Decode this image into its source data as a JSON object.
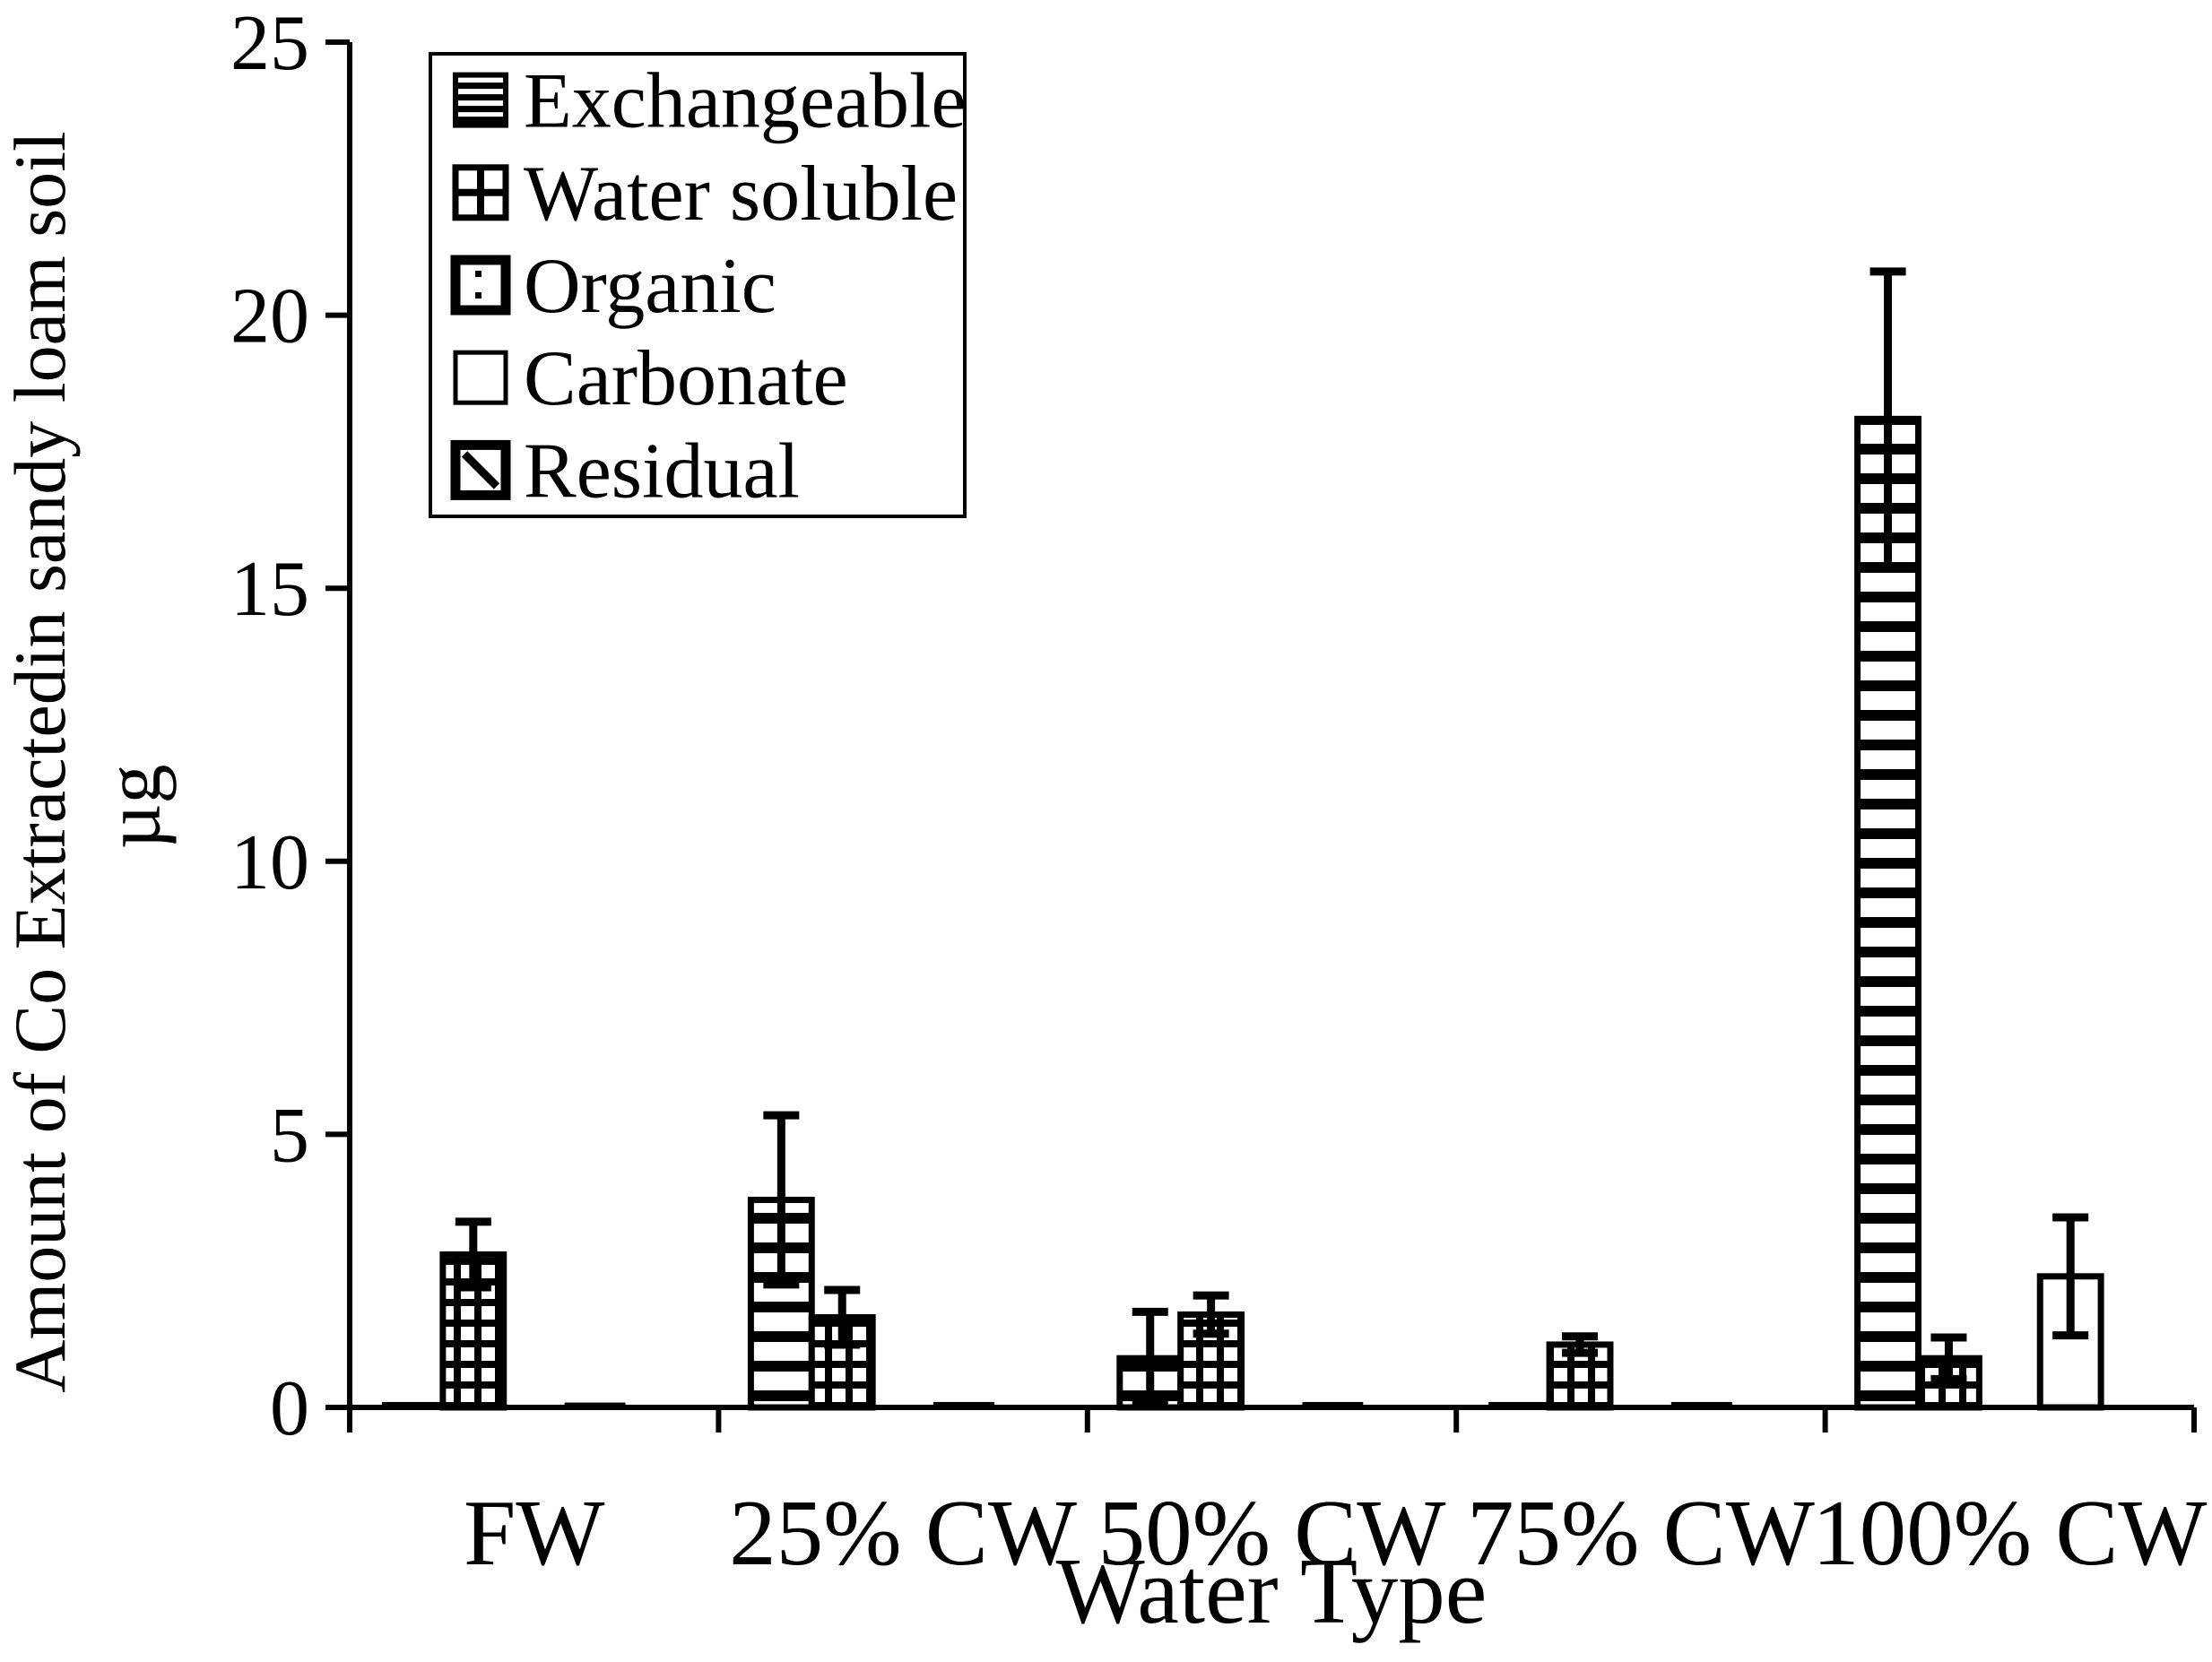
{
  "chart_data": {
    "type": "bar",
    "title": "",
    "xlabel": "Water Type",
    "ylabel": "Amount of Co Extractedin sandy loam soil",
    "ylabel_units": "µg",
    "ylim": [
      0,
      25
    ],
    "yticks": [
      0,
      5,
      10,
      15,
      20,
      25
    ],
    "categories": [
      "FW",
      "25% CW",
      "50% CW",
      "75% CW",
      "100% CW"
    ],
    "series": [
      {
        "name": "Exchangeable",
        "hatch": "hlines",
        "values": [
          0.05,
          3.8,
          0.9,
          0.05,
          18.1
        ],
        "errors": [
          0,
          1.55,
          0.85,
          0,
          2.7
        ]
      },
      {
        "name": "Water soluble",
        "hatch": "grid",
        "values": [
          2.8,
          1.65,
          1.7,
          1.15,
          0.9
        ],
        "errors": [
          0.6,
          0.5,
          0.35,
          0.15,
          0.38
        ]
      },
      {
        "name": "Organic",
        "hatch": "dots",
        "values": [
          0,
          0,
          0,
          0,
          0
        ],
        "errors": [
          0,
          0,
          0,
          0,
          0
        ]
      },
      {
        "name": "Carbonate",
        "hatch": "plain",
        "values": [
          0.04,
          0.05,
          0.05,
          0.05,
          2.4
        ],
        "errors": [
          0,
          0,
          0,
          0,
          1.08
        ]
      },
      {
        "name": "Residual",
        "hatch": "diag",
        "values": [
          0,
          0,
          0,
          0,
          0
        ],
        "errors": [
          0,
          0,
          0,
          0,
          0
        ]
      }
    ],
    "legend": {
      "position": "top-left",
      "entries": [
        "Exchangeable",
        "Water soluble",
        "Organic",
        "Carbonate",
        "Residual"
      ]
    },
    "grid": false,
    "colors": {
      "foreground": "#000000",
      "background": "#ffffff"
    }
  }
}
